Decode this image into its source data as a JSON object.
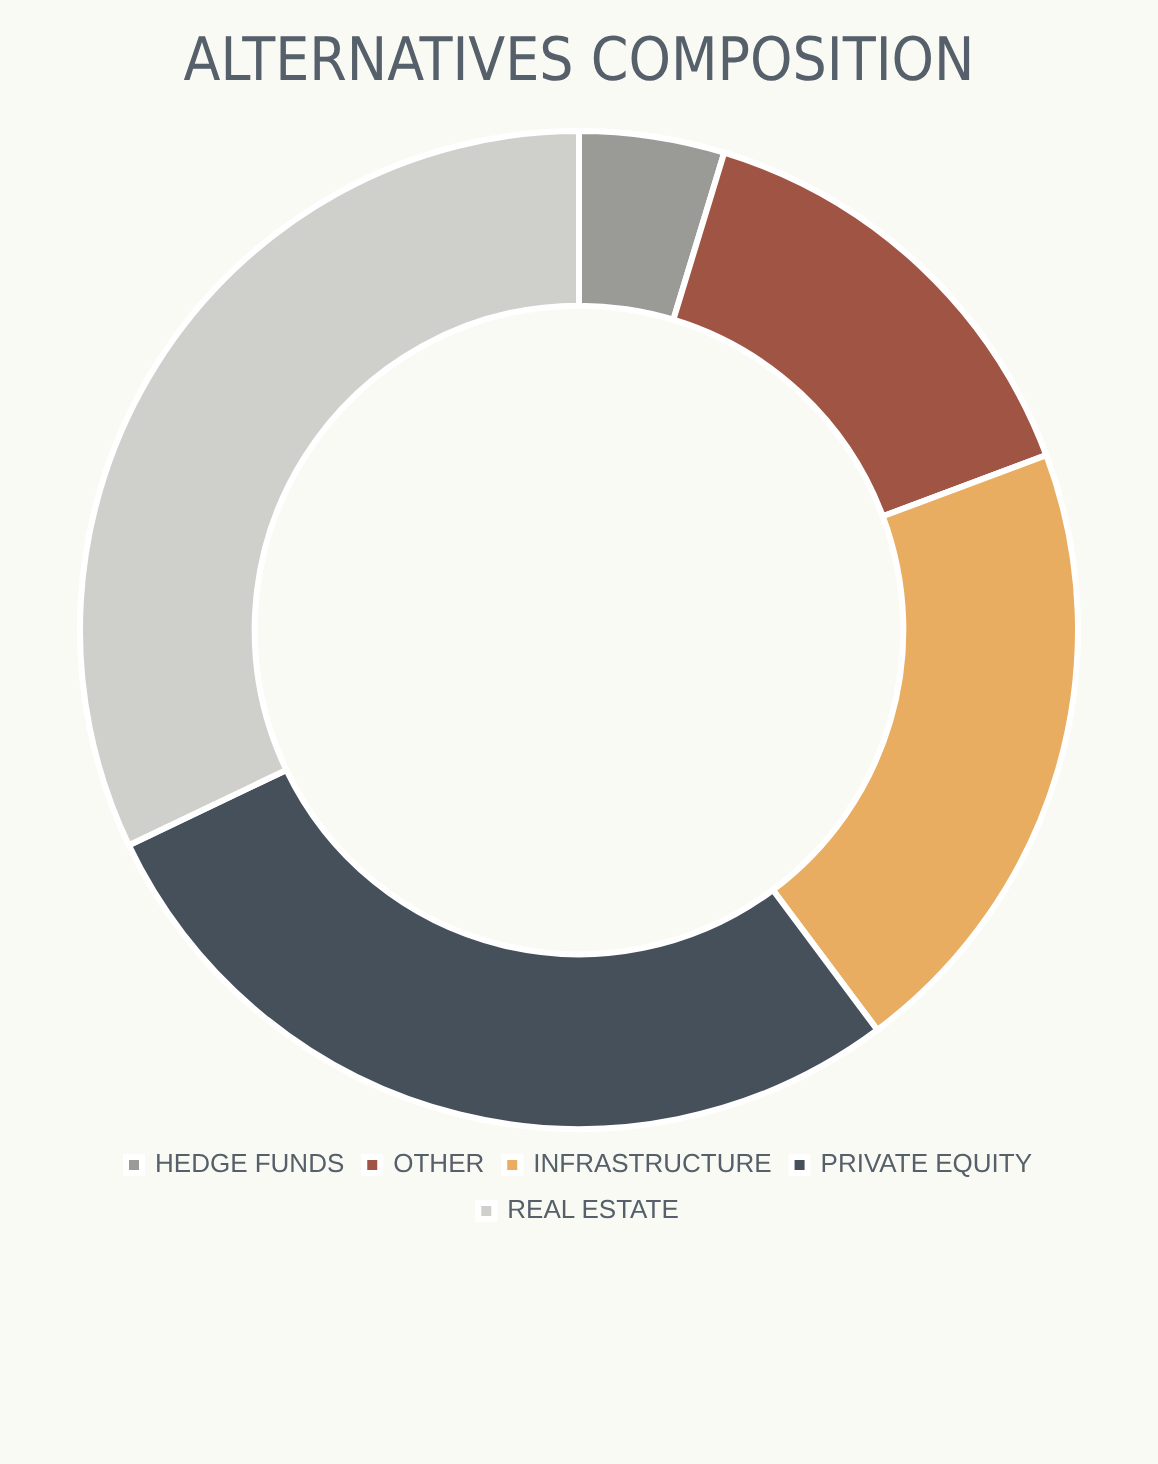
{
  "chart_data": {
    "type": "donut",
    "title": "ALTERNATIVES COMPOSITION",
    "categories": [
      "HEDGE FUNDS",
      "OTHER",
      "INFRASTRUCTURE",
      "PRIVATE EQUITY",
      "REAL ESTATE"
    ],
    "values": [
      4.7,
      14.6,
      20.5,
      28.1,
      32.1
    ],
    "colors": [
      "#9a9b96",
      "#a05444",
      "#e8ad60",
      "#46505a",
      "#cfcfcb"
    ],
    "legend": "bottom"
  }
}
